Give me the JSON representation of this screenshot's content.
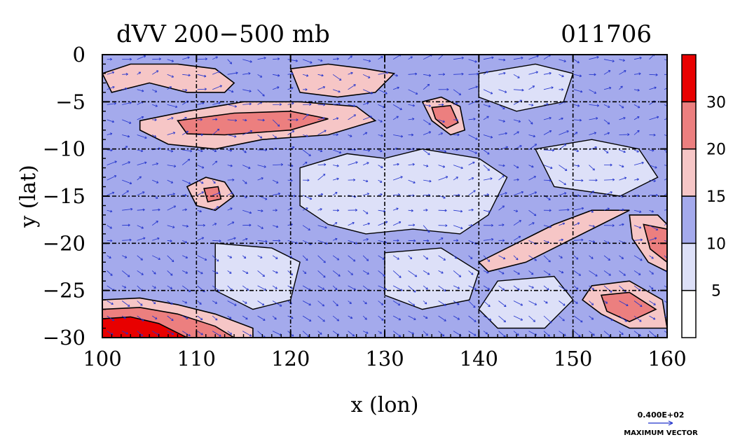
{
  "chart_data": {
    "type": "heatmap",
    "title": "dVV 200−500 mb",
    "date_label": "011706",
    "xlabel": "x (lon)",
    "ylabel": "y (lat)",
    "xlim": [
      100,
      160
    ],
    "ylim": [
      -30,
      0
    ],
    "x_ticks": [
      100,
      110,
      120,
      130,
      140,
      150,
      160
    ],
    "x_tick_labels": [
      "100",
      "110",
      "120",
      "130",
      "140",
      "150",
      "160"
    ],
    "y_ticks": [
      0,
      -5,
      -10,
      -15,
      -20,
      -25,
      -30
    ],
    "y_tick_labels": [
      "0",
      "−5",
      "−10",
      "−15",
      "−20",
      "−25",
      "−30"
    ],
    "grid": true,
    "colorbar": {
      "levels": [
        0,
        5,
        10,
        15,
        20,
        30,
        35
      ],
      "tick_labels": [
        "5",
        "10",
        "15",
        "20",
        "30"
      ],
      "tick_values": [
        5,
        10,
        15,
        20,
        30
      ],
      "colors": [
        "#ffffff",
        "#dde0f8",
        "#a4aaec",
        "#f6c6c6",
        "#ec7f7f",
        "#e80000"
      ]
    },
    "vector_key": {
      "value_label": "0.400E+02",
      "caption": "MAXIMUM VECTOR",
      "color": "#2233cc"
    },
    "regions": [
      {
        "level": 3,
        "outline": [
          [
            100,
            -2
          ],
          [
            103,
            -1
          ],
          [
            108,
            -1
          ],
          [
            112,
            -1.5
          ],
          [
            114,
            -3
          ],
          [
            113,
            -4
          ],
          [
            109,
            -4
          ],
          [
            105,
            -3
          ],
          [
            101,
            -4
          ]
        ]
      },
      {
        "level": 3,
        "outline": [
          [
            120,
            -1.5
          ],
          [
            124,
            -1
          ],
          [
            128,
            -1.5
          ],
          [
            131,
            -2
          ],
          [
            129,
            -4
          ],
          [
            125,
            -4.5
          ],
          [
            121,
            -4
          ]
        ]
      },
      {
        "level": 3,
        "outline": [
          [
            104,
            -7
          ],
          [
            109,
            -6
          ],
          [
            115,
            -5
          ],
          [
            121,
            -5
          ],
          [
            127,
            -5.5
          ],
          [
            129,
            -7
          ],
          [
            124,
            -8.5
          ],
          [
            117,
            -9
          ],
          [
            112,
            -10
          ],
          [
            107,
            -9.5
          ],
          [
            104,
            -8
          ]
        ]
      },
      {
        "level": 4,
        "outline": [
          [
            108,
            -7
          ],
          [
            114,
            -6.2
          ],
          [
            120,
            -6
          ],
          [
            124,
            -6.8
          ],
          [
            120,
            -8
          ],
          [
            113,
            -8.5
          ],
          [
            109,
            -8.4
          ]
        ]
      },
      {
        "level": 3,
        "outline": [
          [
            134,
            -5
          ],
          [
            136,
            -4.5
          ],
          [
            138,
            -5.5
          ],
          [
            138.5,
            -8
          ],
          [
            137,
            -8.5
          ],
          [
            135,
            -7
          ]
        ]
      },
      {
        "level": 4,
        "outline": [
          [
            135,
            -5.6
          ],
          [
            137,
            -5.4
          ],
          [
            137.8,
            -7.2
          ],
          [
            136.6,
            -7.8
          ],
          [
            135.4,
            -6.8
          ]
        ]
      },
      {
        "level": 3,
        "outline": [
          [
            109,
            -14
          ],
          [
            111,
            -13
          ],
          [
            113,
            -13.5
          ],
          [
            114,
            -15
          ],
          [
            112,
            -16.5
          ],
          [
            110,
            -16
          ]
        ]
      },
      {
        "level": 4,
        "outline": [
          [
            110.8,
            -14.2
          ],
          [
            112.3,
            -14
          ],
          [
            112.6,
            -15.3
          ],
          [
            111.2,
            -15.6
          ]
        ]
      },
      {
        "level": 3,
        "outline": [
          [
            140,
            -22
          ],
          [
            144,
            -20
          ],
          [
            148,
            -18
          ],
          [
            152,
            -16.5
          ],
          [
            156,
            -16.5
          ],
          [
            153,
            -18
          ],
          [
            149,
            -20
          ],
          [
            145,
            -22
          ],
          [
            141,
            -23
          ]
        ]
      },
      {
        "level": 3,
        "outline": [
          [
            152,
            -24.5
          ],
          [
            156,
            -24
          ],
          [
            159.5,
            -26
          ],
          [
            160,
            -29
          ],
          [
            156,
            -29
          ],
          [
            153,
            -27.5
          ],
          [
            151,
            -26
          ]
        ]
      },
      {
        "level": 4,
        "outline": [
          [
            153,
            -25.5
          ],
          [
            156,
            -25.2
          ],
          [
            158.8,
            -27
          ],
          [
            156,
            -28.3
          ],
          [
            153.6,
            -27.2
          ]
        ]
      },
      {
        "level": 3,
        "outline": [
          [
            156,
            -17
          ],
          [
            159,
            -17
          ],
          [
            160,
            -18
          ],
          [
            160,
            -23
          ],
          [
            158,
            -22
          ],
          [
            156.3,
            -19.5
          ]
        ]
      },
      {
        "level": 4,
        "outline": [
          [
            157.5,
            -18
          ],
          [
            160,
            -18.5
          ],
          [
            160,
            -22
          ],
          [
            158.2,
            -20.6
          ]
        ]
      },
      {
        "level": 3,
        "outline": [
          [
            100,
            -26
          ],
          [
            104,
            -25.8
          ],
          [
            108,
            -26.5
          ],
          [
            112,
            -27.5
          ],
          [
            116,
            -29
          ],
          [
            116,
            -30
          ],
          [
            100,
            -30
          ]
        ]
      },
      {
        "level": 4,
        "outline": [
          [
            100,
            -27
          ],
          [
            104,
            -26.8
          ],
          [
            108,
            -27.5
          ],
          [
            112,
            -28.8
          ],
          [
            114,
            -30
          ],
          [
            100,
            -30
          ]
        ]
      },
      {
        "level": 5,
        "outline": [
          [
            100,
            -28
          ],
          [
            103,
            -27.8
          ],
          [
            106,
            -28.5
          ],
          [
            109,
            -30
          ],
          [
            100,
            -30
          ]
        ]
      }
    ]
  }
}
